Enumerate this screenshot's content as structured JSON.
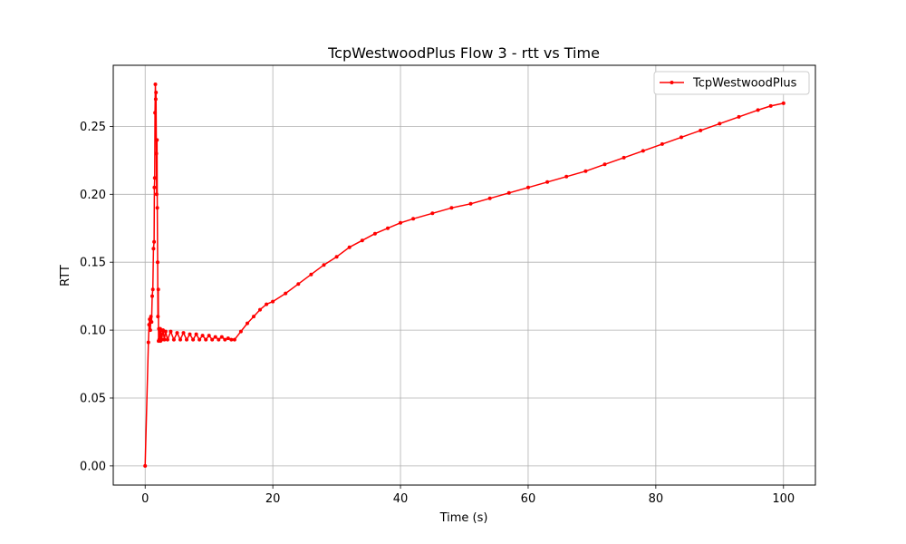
{
  "chart_data": {
    "type": "line",
    "title": "TcpWestwoodPlus Flow 3 - rtt vs Time",
    "xlabel": "Time (s)",
    "ylabel": "RTT",
    "xlim": [
      -5,
      105
    ],
    "ylim": [
      -0.0141,
      0.295
    ],
    "xticks": [
      0,
      20,
      40,
      60,
      80,
      100
    ],
    "xtick_labels": [
      "0",
      "20",
      "40",
      "60",
      "80",
      "100"
    ],
    "yticks": [
      0.0,
      0.05,
      0.1,
      0.15,
      0.2,
      0.25
    ],
    "ytick_labels": [
      "0.00",
      "0.05",
      "0.10",
      "0.15",
      "0.20",
      "0.25"
    ],
    "grid": true,
    "legend": "upper-right",
    "color": "#ff0000",
    "series": [
      {
        "name": "TcpWestwoodPlus",
        "x": [
          0.0,
          0.5,
          0.6,
          0.7,
          0.8,
          0.9,
          1.0,
          1.1,
          1.2,
          1.3,
          1.4,
          1.45,
          1.5,
          1.55,
          1.6,
          1.65,
          1.7,
          1.75,
          1.8,
          1.85,
          1.9,
          1.95,
          2.0,
          2.05,
          2.1,
          2.15,
          2.2,
          2.25,
          2.3,
          2.35,
          2.4,
          2.5,
          2.6,
          2.8,
          3.0,
          3.2,
          3.5,
          4.0,
          4.5,
          5.0,
          5.5,
          6.0,
          6.5,
          7.0,
          7.5,
          8.0,
          8.5,
          9.0,
          9.5,
          10.0,
          10.5,
          11.0,
          11.5,
          12.0,
          12.5,
          13.0,
          13.5,
          14.0,
          15.0,
          16.0,
          17.0,
          18.0,
          19.0,
          20.0,
          22.0,
          24.0,
          26.0,
          28.0,
          30.0,
          32.0,
          34.0,
          36.0,
          38.0,
          40.0,
          42.0,
          45.0,
          48.0,
          51.0,
          54.0,
          57.0,
          60.0,
          63.0,
          66.0,
          69.0,
          72.0,
          75.0,
          78.0,
          81.0,
          84.0,
          87.0,
          90.0,
          93.0,
          96.0,
          98.0,
          100.0
        ],
        "y": [
          0.0,
          0.091,
          0.104,
          0.108,
          0.1,
          0.11,
          0.106,
          0.125,
          0.13,
          0.16,
          0.165,
          0.205,
          0.212,
          0.26,
          0.281,
          0.27,
          0.275,
          0.23,
          0.2,
          0.24,
          0.19,
          0.15,
          0.11,
          0.13,
          0.092,
          0.101,
          0.093,
          0.1,
          0.093,
          0.101,
          0.092,
          0.1,
          0.093,
          0.1,
          0.093,
          0.099,
          0.093,
          0.099,
          0.093,
          0.098,
          0.093,
          0.098,
          0.093,
          0.097,
          0.093,
          0.097,
          0.093,
          0.096,
          0.093,
          0.096,
          0.093,
          0.095,
          0.093,
          0.095,
          0.093,
          0.094,
          0.093,
          0.093,
          0.099,
          0.105,
          0.11,
          0.115,
          0.119,
          0.121,
          0.127,
          0.134,
          0.141,
          0.148,
          0.154,
          0.161,
          0.166,
          0.171,
          0.175,
          0.179,
          0.182,
          0.186,
          0.19,
          0.193,
          0.197,
          0.201,
          0.205,
          0.209,
          0.213,
          0.217,
          0.222,
          0.227,
          0.232,
          0.237,
          0.242,
          0.247,
          0.252,
          0.257,
          0.262,
          0.265,
          0.267
        ]
      }
    ]
  }
}
